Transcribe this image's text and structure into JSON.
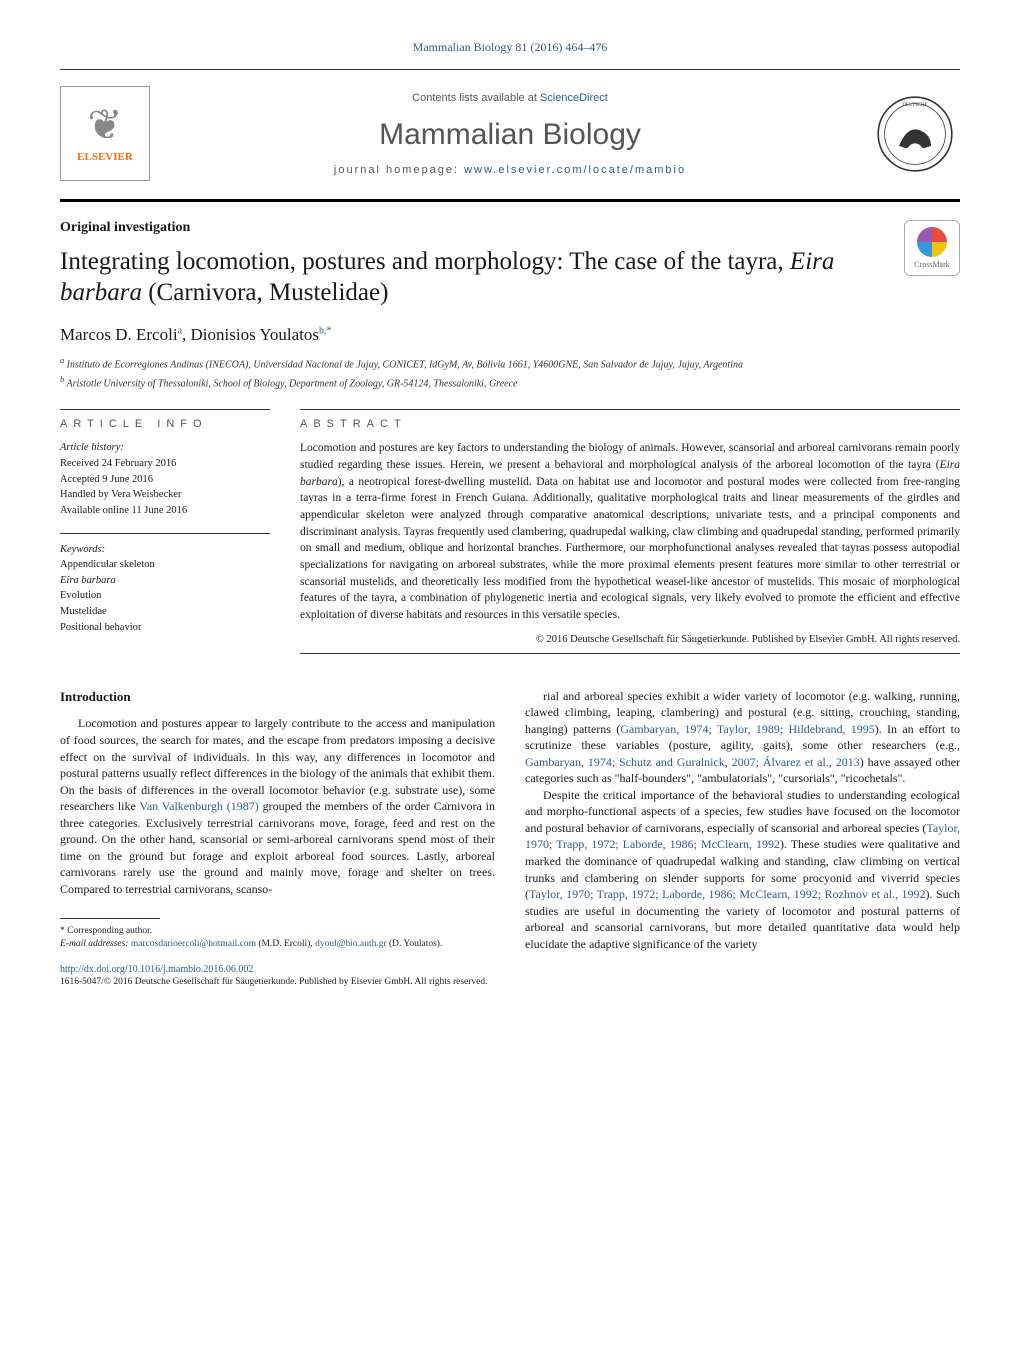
{
  "journalRef": "Mammalian Biology 81 (2016) 464–476",
  "contentsLine": {
    "prefix": "Contents lists available at ",
    "linkText": "ScienceDirect"
  },
  "journalTitle": "Mammalian Biology",
  "homepageLine": {
    "prefix": "journal homepage: ",
    "url": "www.elsevier.com/locate/mambio"
  },
  "publisherName": "ELSEVIER",
  "category": "Original investigation",
  "crossmarkLabel": "CrossMark",
  "title": {
    "plain1": "Integrating locomotion, postures and morphology: The case of the tayra, ",
    "italic": "Eira barbara",
    "plain2": " (Carnivora, Mustelidae)"
  },
  "authors": [
    {
      "name": "Marcos D. Ercoli",
      "sup": "a"
    },
    {
      "name": "Dionisios Youlatos",
      "sup": "b,*"
    }
  ],
  "authorSeparator": ", ",
  "affiliations": [
    {
      "sup": "a",
      "text": "Instituto de Ecorregiones Andinas (INECOA), Universidad Nacional de Jujuy, CONICET, IdGyM, Av, Bolivia 1661, Y4600GNE, San Salvador de Jujuy, Jujuy, Argentina"
    },
    {
      "sup": "b",
      "text": "Aristotle University of Thessaloniki, School of Biology, Department of Zoology, GR-54124, Thessaloniki, Greece"
    }
  ],
  "articleInfo": {
    "heading": "article info",
    "history": {
      "label": "Article history:",
      "received": "Received 24 February 2016",
      "accepted": "Accepted 9 June 2016",
      "handled": "Handled by Vera Weisbecker",
      "online": "Available online 11 June 2016"
    },
    "keywordsLabel": "Keywords:",
    "keywords": [
      "Appendicular skeleton",
      "Eira barbara",
      "Evolution",
      "Mustelidae",
      "Positional behavior"
    ]
  },
  "abstract": {
    "heading": "abstract",
    "text1": "Locomotion and postures are key factors to understanding the biology of animals. However, scansorial and arboreal carnivorans remain poorly studied regarding these issues. Herein, we present a behavioral and morphological analysis of the arboreal locomotion of the tayra (",
    "italic1": "Eira barbara",
    "text2": "), a neotropical forest-dwelling mustelid. Data on habitat use and locomotor and postural modes were collected from free-ranging tayras in a terra-firme forest in French Guiana. Additionally, qualitative morphological traits and linear measurements of the girdles and appendicular skeleton were analyzed through comparative anatomical descriptions, univariate tests, and a principal components and discriminant analysis. Tayras frequently used clambering, quadrupedal walking, claw climbing and quadrupedal standing, performed primarily on small and medium, oblique and horizontal branches. Furthermore, our morphofunctional analyses revealed that tayras possess autopodial specializations for navigating on arboreal substrates, while the more proximal elements present features more similar to other terrestrial or scansorial mustelids, and theoretically less modified from the hypothetical weasel-like ancestor of mustelids. This mosaic of morphological features of the tayra, a combination of phylogenetic inertia and ecological signals, very likely evolved to promote the efficient and effective exploitation of diverse habitats and resources in this versatile species.",
    "copyright": "© 2016 Deutsche Gesellschaft für Säugetierkunde. Published by Elsevier GmbH. All rights reserved."
  },
  "intro": {
    "heading": "Introduction",
    "leftParas": [
      {
        "spans": [
          {
            "t": "Locomotion and postures appear to largely contribute to the access and manipulation of food sources, the search for mates, and the escape from predators imposing a decisive effect on the survival of individuals. In this way, any differences in locomotor and postural patterns usually reflect differences in the biology of the animals that exhibit them. On the basis of differences in the overall locomotor behavior (e.g. substrate use), some researchers like "
          },
          {
            "t": "Van Valkenburgh (1987)",
            "link": true
          },
          {
            "t": " grouped the members of the order Carnivora in three categories. Exclusively terrestrial carnivorans move, forage, feed and rest on the ground. On the other hand, scansorial or semi-arboreal carnivorans spend most of their time on the ground but forage and exploit arboreal food sources. Lastly, arboreal carnivorans rarely use the ground and mainly move, forage and shelter on trees. Compared to terrestrial carnivorans, scanso-"
          }
        ]
      }
    ],
    "rightParas": [
      {
        "spans": [
          {
            "t": "rial and arboreal species exhibit a wider variety of locomotor (e.g. walking, running, clawed climbing, leaping, clambering) and postural (e.g. sitting, crouching, standing, hanging) patterns ("
          },
          {
            "t": "Gambaryan, 1974; Taylor, 1989; Hildebrand, 1995",
            "link": true
          },
          {
            "t": "). In an effort to scrutinize these variables (posture, agility, gaits), some other researchers (e.g., "
          },
          {
            "t": "Gambaryan, 1974; Schutz and Guralnick, 2007; Álvarez et al., 2013",
            "link": true
          },
          {
            "t": ") have assayed other categories such as \"half-bounders\", \"ambulatorials\", \"cursorials\", \"ricochetals\"."
          }
        ]
      },
      {
        "spans": [
          {
            "t": "Despite the critical importance of the behavioral studies to understanding ecological and morpho-functional aspects of a species, few studies have focused on the locomotor and postural behavior of carnivorans, especially of scansorial and arboreal species ("
          },
          {
            "t": "Taylor, 1970; Trapp, 1972; Laborde, 1986; McClearn, 1992",
            "link": true
          },
          {
            "t": "). These studies were qualitative and marked the dominance of quadrupedal walking and standing, claw climbing on vertical trunks and clambering on slender supports for some procyonid and viverrid species ("
          },
          {
            "t": "Taylor, 1970; Trapp, 1972; Laborde, 1986; McClearn, 1992; Rozhnov et al., 1992",
            "link": true
          },
          {
            "t": "). Such studies are useful in documenting the variety of locomotor and postural patterns of arboreal and scansorial carnivorans, but more detailed quantitative data would help elucidate the adaptive significance of the variety"
          }
        ]
      }
    ]
  },
  "footnote": {
    "corrLabel": "* Corresponding author.",
    "emailLabel": "E-mail addresses:",
    "emails": [
      {
        "addr": "marcosdarioercoli@hotmail.com",
        "who": "(M.D. Ercoli)"
      },
      {
        "addr": "dyoul@bio.auth.gr",
        "who": "(D. Youlatos)"
      }
    ],
    "emailJoin": ", "
  },
  "doi": "http://dx.doi.org/10.1016/j.mambio.2016.06.002",
  "bottomCopy": "1616-5047/© 2016 Deutsche Gesellschaft für Säugetierkunde. Published by Elsevier GmbH. All rights reserved.",
  "colors": {
    "link": "#2e5c8a",
    "publisherOrange": "#ff6a00",
    "ruleDark": "#000000",
    "textGray": "#555555"
  }
}
